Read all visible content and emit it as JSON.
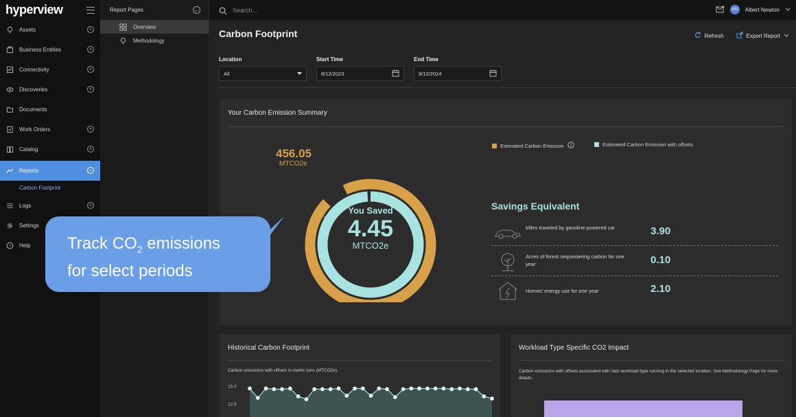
{
  "app": {
    "logo": "hyperview"
  },
  "nav": {
    "items": [
      {
        "label": "Assets",
        "icon": "lightbulb-icon",
        "expandable": true
      },
      {
        "label": "Business Entities",
        "icon": "building-icon",
        "expandable": true
      },
      {
        "label": "Connectivity",
        "icon": "connectivity-icon",
        "expandable": true
      },
      {
        "label": "Discoveries",
        "icon": "eye-icon",
        "expandable": true
      },
      {
        "label": "Documents",
        "icon": "folder-icon",
        "expandable": false
      },
      {
        "label": "Work Orders",
        "icon": "clipboard-icon",
        "expandable": true
      },
      {
        "label": "Catalog",
        "icon": "book-icon",
        "expandable": true
      },
      {
        "label": "Reports",
        "icon": "chart-icon",
        "expandable": true,
        "active": true
      },
      {
        "label": "Logs",
        "icon": "list-icon",
        "expandable": true
      },
      {
        "label": "Settings",
        "icon": "gear-icon",
        "expandable": false
      },
      {
        "label": "Help",
        "icon": "help-icon",
        "expandable": false
      }
    ],
    "sub_item": "Carbon Footprint"
  },
  "report_pages": {
    "title": "Report Pages",
    "items": [
      {
        "label": "Overview",
        "selected": true
      },
      {
        "label": "Methodology",
        "selected": false
      }
    ]
  },
  "topbar": {
    "search_placeholder": "Search...",
    "user_initials": "AN",
    "user_name": "Albert Newton"
  },
  "page": {
    "title": "Carbon Footprint",
    "refresh_label": "Refresh",
    "export_label": "Export Report"
  },
  "filters": {
    "location_label": "Location",
    "location_value": "All",
    "start_label": "Start Time",
    "start_value": "8/12/2023",
    "end_label": "End Time",
    "end_value": "9/12/2024"
  },
  "summary": {
    "title": "Your Carbon Emission Summary",
    "estimated_value": "456.05",
    "estimated_unit": "MTCO2e",
    "saved_label": "You Saved",
    "saved_value": "4.45",
    "saved_unit": "MTCO2e",
    "legend": [
      {
        "label": "Estimated Carbon Emission",
        "color": "#d9a04a"
      },
      {
        "label": "Estimated Carbon Emission with offsets",
        "color": "#a9e3e1"
      }
    ],
    "offset_fraction": 0.99
  },
  "savings": {
    "title": "Savings Equivalent",
    "rows": [
      {
        "desc": "Miles traveled by gasoline-powered car",
        "value": "3.90",
        "icon": "car-icon"
      },
      {
        "desc": "Acres of forest sequestering carbon for one year",
        "value": "0.10",
        "icon": "tree-icon"
      },
      {
        "desc": "Homes' energy use for one year",
        "value": "2.10",
        "icon": "house-icon"
      }
    ]
  },
  "callout": {
    "line1_pre": "Track CO",
    "line1_sub": "2",
    "line1_post": " emissions",
    "line2": "for select periods"
  },
  "historical": {
    "title": "Historical Carbon Footprint",
    "subtitle": "Carbon emissions with offsets in metric tons (MTCO2e)."
  },
  "workload": {
    "title": "Workload Type Specific CO2 Impact",
    "subtitle": "Carbon emissions with offsets associated with rack workload type running in the selected location. See Methodology Page for more details."
  },
  "chart_data": {
    "type": "line",
    "yticks": [
      "15.0",
      "12.5"
    ],
    "ylim": [
      12.0,
      15.5
    ],
    "series": [
      {
        "values": [
          14.6,
          13.3,
          14.6,
          14.5,
          14.5,
          14.6,
          13.5,
          13.1,
          14.5,
          14.5,
          14.5,
          14.6,
          13.6,
          14.6,
          14.6,
          13.6,
          14.6,
          14.5,
          13.4,
          14.5,
          14.6,
          14.6,
          14.6,
          14.6,
          14.6,
          14.5,
          14.6,
          14.5,
          14.5,
          13.5,
          13.2
        ]
      }
    ]
  }
}
